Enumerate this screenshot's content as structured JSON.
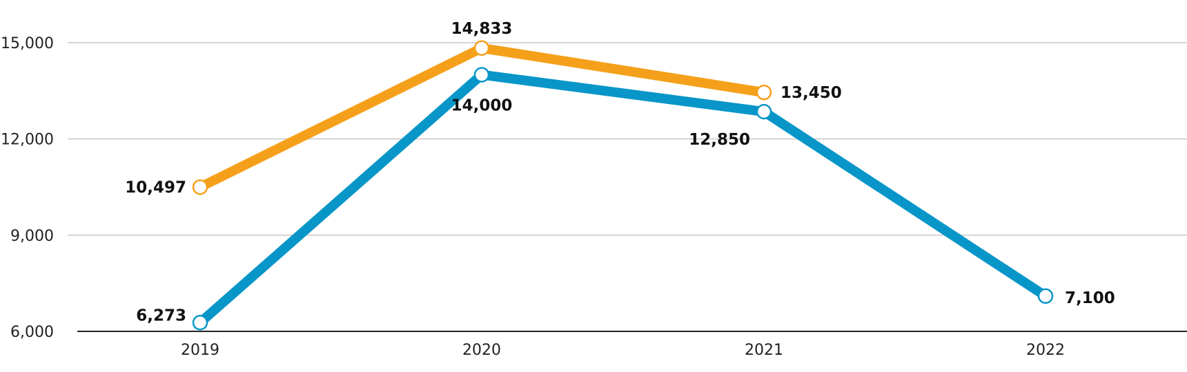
{
  "chart_data": {
    "type": "line",
    "categories": [
      "2019",
      "2020",
      "2021",
      "2022"
    ],
    "ylim": [
      6000,
      15000
    ],
    "yticks": [
      6000,
      9000,
      12000,
      15000
    ],
    "ytick_labels": [
      "6,000",
      "9,000",
      "12,000",
      "15,000"
    ],
    "grid": true,
    "series": [
      {
        "color": "#F5A01A",
        "values": [
          10497,
          14833,
          13450,
          null
        ],
        "labels": [
          "10,497",
          "14,833",
          "13,450",
          ""
        ]
      },
      {
        "color": "#0896C8",
        "values": [
          6273,
          14000,
          12850,
          7100
        ],
        "labels": [
          "6,273",
          "14,000",
          "12,850",
          "7,100"
        ]
      }
    ]
  }
}
